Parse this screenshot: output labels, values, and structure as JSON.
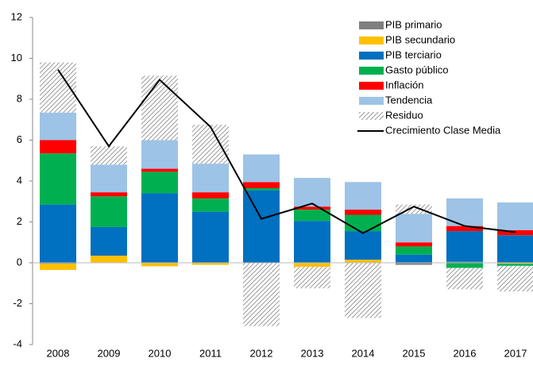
{
  "chart_data": {
    "type": "bar",
    "stacked": true,
    "categories": [
      "2008",
      "2009",
      "2010",
      "2011",
      "2012",
      "2013",
      "2014",
      "2015",
      "2016",
      "2017"
    ],
    "ylim": [
      -4,
      12
    ],
    "yticks": [
      -4,
      -2,
      0,
      2,
      4,
      6,
      8,
      10,
      12
    ],
    "legend": "top-right",
    "series": [
      {
        "name": "PIB primario",
        "color": "#7f7f7f",
        "values": [
          -0.05,
          0,
          -0.02,
          0,
          0,
          0,
          0,
          -0.1,
          0.05,
          0
        ]
      },
      {
        "name": "PIB secundario",
        "color": "#ffc000",
        "values": [
          -0.3,
          0.35,
          -0.15,
          -0.1,
          0,
          -0.2,
          0.15,
          0,
          0,
          -0.05
        ]
      },
      {
        "name": "PIB terciario",
        "color": "#0070c0",
        "values": [
          2.85,
          1.4,
          3.4,
          2.5,
          3.55,
          2.05,
          1.4,
          0.4,
          1.5,
          1.35
        ]
      },
      {
        "name": "Gasto público",
        "color": "#00b050",
        "values": [
          2.5,
          1.5,
          1.05,
          0.65,
          0.1,
          0.55,
          0.8,
          0.4,
          -0.25,
          -0.1
        ]
      },
      {
        "name": "Inflación",
        "color": "#ff0000",
        "values": [
          0.65,
          0.2,
          0.15,
          0.3,
          0.3,
          0.15,
          0.25,
          0.2,
          0.25,
          0.25
        ]
      },
      {
        "name": "Tendencia",
        "color": "#9dc3e6",
        "values": [
          1.35,
          1.35,
          1.4,
          1.4,
          1.35,
          1.4,
          1.35,
          1.4,
          1.35,
          1.35
        ]
      },
      {
        "name": "Residuo",
        "color": "#a6a6a6",
        "pattern": "hatch",
        "values": [
          2.45,
          0.9,
          3.15,
          1.9,
          -3.1,
          -1.05,
          -2.7,
          0.45,
          -1.05,
          -1.25
        ]
      },
      {
        "name": "Crecimiento Clase Media",
        "type": "line",
        "color": "#000000",
        "values": [
          9.45,
          5.7,
          8.95,
          6.65,
          2.15,
          2.9,
          1.45,
          2.75,
          1.8,
          1.5
        ]
      }
    ]
  }
}
